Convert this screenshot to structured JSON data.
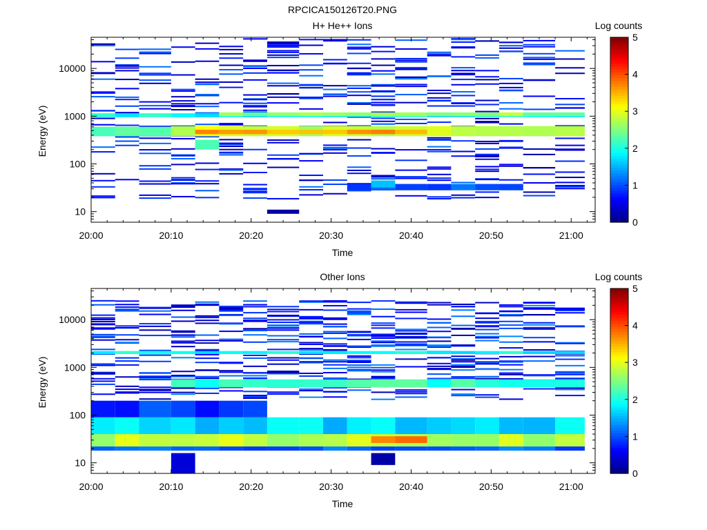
{
  "figure_title": "RPCICA150126T20.PNG",
  "chart_data": [
    {
      "type": "heatmap",
      "title": "H+ He++ Ions",
      "xlabel": "Time",
      "ylabel": "Energy (eV)",
      "yscale": "log",
      "ylim": [
        6,
        45000
      ],
      "xlim": [
        "20:00",
        "21:03"
      ],
      "x_ticks": [
        "20:00",
        "20:10",
        "20:20",
        "20:30",
        "20:40",
        "20:50",
        "21:00"
      ],
      "y_ticks": [
        "10",
        "100",
        "1000",
        "10000"
      ],
      "colorbar": {
        "label": "Log counts",
        "range": [
          0,
          5
        ],
        "ticks": [
          "0",
          "1",
          "2",
          "3",
          "4",
          "5"
        ],
        "colormap": "jet"
      },
      "time_bins_start": [
        "20:00",
        "20:03",
        "20:06",
        "20:10",
        "20:13",
        "20:16",
        "20:19",
        "20:22",
        "20:26",
        "20:29",
        "20:32",
        "20:35",
        "20:38",
        "20:42",
        "20:45",
        "20:48",
        "20:51",
        "20:54",
        "20:58"
      ],
      "bands": [
        {
          "e_lo": 950,
          "e_hi": 1150,
          "value": 1.9,
          "cols": [
            0,
            18
          ]
        },
        {
          "e_lo": 1000,
          "e_hi": 1200,
          "value": 2.6,
          "cols": [
            5,
            18
          ]
        },
        {
          "e_lo": 380,
          "e_hi": 620,
          "value": 2.9,
          "cols": [
            3,
            18
          ]
        },
        {
          "e_lo": 420,
          "e_hi": 520,
          "value": 3.5,
          "cols": [
            4,
            12
          ]
        },
        {
          "e_lo": 380,
          "e_hi": 600,
          "value": 2.2,
          "cols": [
            0,
            2
          ]
        },
        {
          "e_lo": 200,
          "e_hi": 320,
          "value": 2.1,
          "cols": [
            4,
            4
          ]
        },
        {
          "e_lo": 28,
          "e_hi": 38,
          "value": 1.1,
          "cols": [
            10,
            16
          ]
        },
        {
          "e_lo": 32,
          "e_hi": 45,
          "value": 1.6,
          "cols": [
            11,
            11
          ]
        },
        {
          "e_lo": 9,
          "e_hi": 11,
          "value": 0.3,
          "cols": [
            7,
            7
          ]
        }
      ],
      "sparse_level": [
        0.2,
        1.2
      ],
      "sparse_energy_range": [
        18,
        42000
      ]
    },
    {
      "type": "heatmap",
      "title": "Other Ions",
      "xlabel": "Time",
      "ylabel": "Energy (eV)",
      "yscale": "log",
      "ylim": [
        6,
        45000
      ],
      "xlim": [
        "20:00",
        "21:03"
      ],
      "x_ticks": [
        "20:00",
        "20:10",
        "20:20",
        "20:30",
        "20:40",
        "20:50",
        "21:00"
      ],
      "y_ticks": [
        "10",
        "100",
        "1000",
        "10000"
      ],
      "colorbar": {
        "label": "Log counts",
        "range": [
          0,
          5
        ],
        "ticks": [
          "0",
          "1",
          "2",
          "3",
          "4",
          "5"
        ],
        "colormap": "jet"
      },
      "time_bins_start": [
        "20:00",
        "20:03",
        "20:06",
        "20:10",
        "20:13",
        "20:16",
        "20:19",
        "20:22",
        "20:26",
        "20:29",
        "20:32",
        "20:35",
        "20:38",
        "20:42",
        "20:45",
        "20:48",
        "20:51",
        "20:54",
        "20:58"
      ],
      "bands": [
        {
          "e_lo": 1900,
          "e_hi": 2200,
          "value": 1.9,
          "cols": [
            0,
            18
          ]
        },
        {
          "e_lo": 380,
          "e_hi": 560,
          "value": 2.1,
          "cols": [
            3,
            18
          ]
        },
        {
          "e_lo": 22,
          "e_hi": 40,
          "value": 2.8,
          "cols": [
            0,
            18
          ]
        },
        {
          "e_lo": 26,
          "e_hi": 36,
          "value": 3.7,
          "cols": [
            11,
            12
          ]
        },
        {
          "e_lo": 40,
          "e_hi": 90,
          "value": 1.7,
          "cols": [
            0,
            18
          ]
        },
        {
          "e_lo": 90,
          "e_hi": 200,
          "value": 0.9,
          "cols": [
            0,
            6
          ]
        },
        {
          "e_lo": 18,
          "e_hi": 22,
          "value": 1.1,
          "cols": [
            0,
            18
          ]
        },
        {
          "e_lo": 9,
          "e_hi": 16,
          "value": 0.2,
          "cols": [
            11,
            11
          ]
        },
        {
          "e_lo": 6,
          "e_hi": 16,
          "value": 0.2,
          "cols": [
            3,
            3
          ]
        }
      ],
      "sparse_level": [
        0.2,
        1.3
      ],
      "sparse_energy_range": [
        200,
        25000
      ]
    }
  ]
}
